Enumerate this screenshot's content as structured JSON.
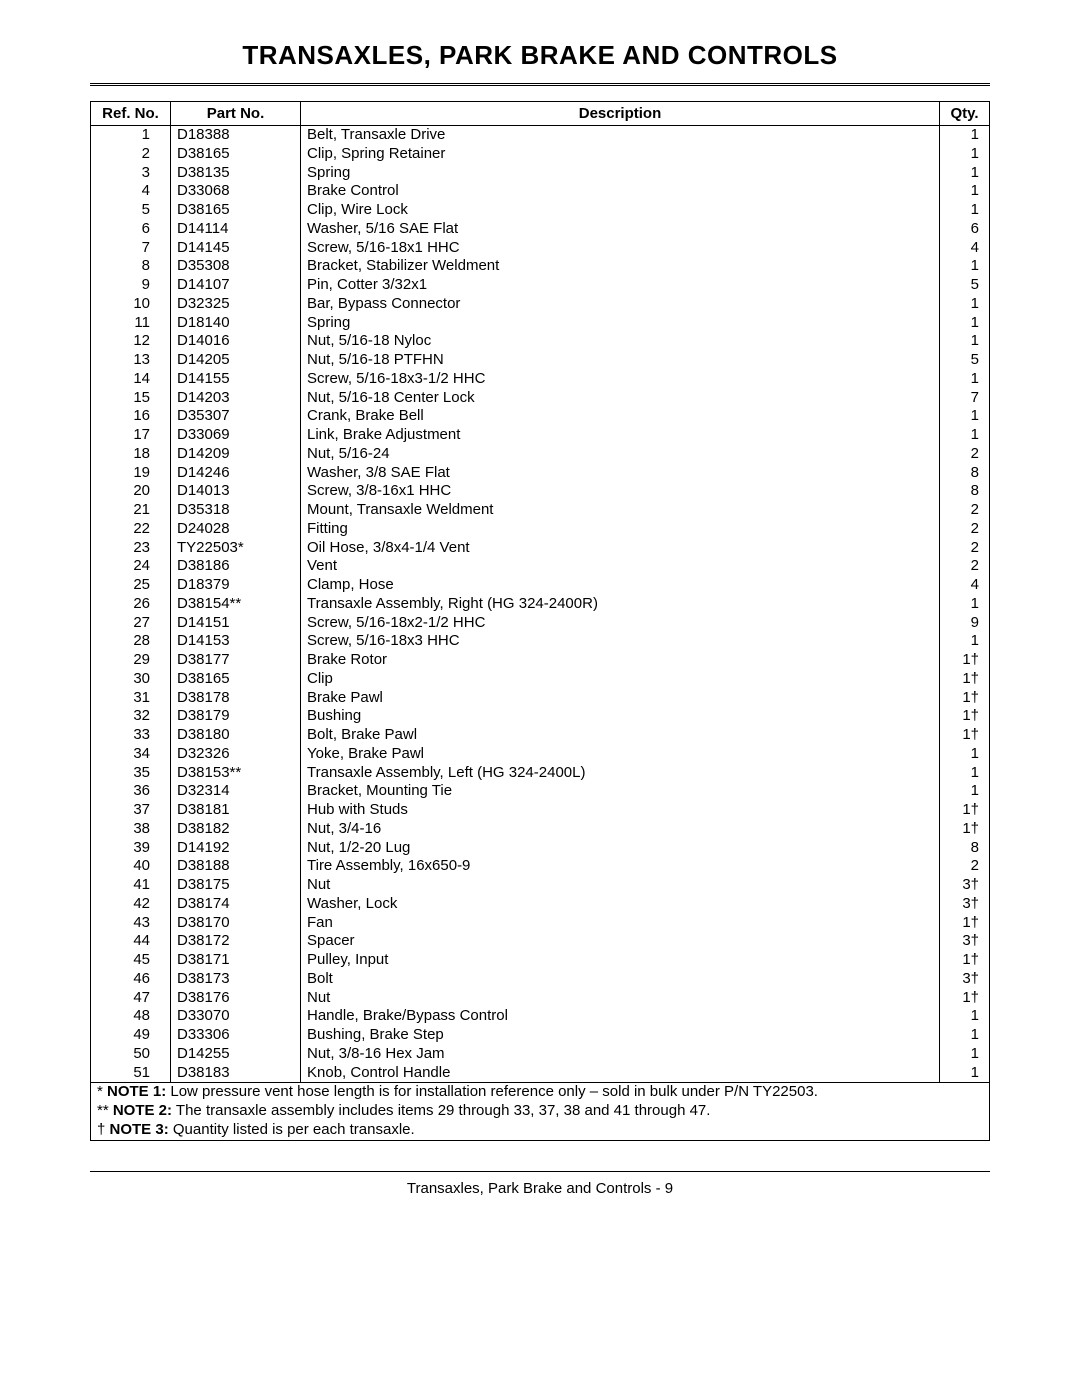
{
  "title": "TRANSAXLES, PARK BRAKE AND CONTROLS",
  "columns": {
    "ref": "Ref. No.",
    "part": "Part No.",
    "desc": "Description",
    "qty": "Qty."
  },
  "rows": [
    {
      "ref": "1",
      "part": "D18388",
      "desc": "Belt, Transaxle Drive",
      "qty": "1"
    },
    {
      "ref": "2",
      "part": "D38165",
      "desc": "Clip, Spring Retainer",
      "qty": "1"
    },
    {
      "ref": "3",
      "part": "D38135",
      "desc": "Spring",
      "qty": "1"
    },
    {
      "ref": "4",
      "part": "D33068",
      "desc": "Brake Control",
      "qty": "1"
    },
    {
      "ref": "5",
      "part": "D38165",
      "desc": "Clip, Wire Lock",
      "qty": "1"
    },
    {
      "ref": "6",
      "part": "D14114",
      "desc": "Washer, 5/16 SAE Flat",
      "qty": "6"
    },
    {
      "ref": "7",
      "part": "D14145",
      "desc": "Screw, 5/16-18x1 HHC",
      "qty": "4"
    },
    {
      "ref": "8",
      "part": "D35308",
      "desc": "Bracket, Stabilizer Weldment",
      "qty": "1"
    },
    {
      "ref": "9",
      "part": "D14107",
      "desc": "Pin, Cotter 3/32x1",
      "qty": "5"
    },
    {
      "ref": "10",
      "part": "D32325",
      "desc": "Bar, Bypass Connector",
      "qty": "1"
    },
    {
      "ref": "11",
      "part": "D18140",
      "desc": "Spring",
      "qty": "1"
    },
    {
      "ref": "12",
      "part": "D14016",
      "desc": "Nut, 5/16-18 Nyloc",
      "qty": "1"
    },
    {
      "ref": "13",
      "part": "D14205",
      "desc": "Nut, 5/16-18 PTFHN",
      "qty": "5"
    },
    {
      "ref": "14",
      "part": "D14155",
      "desc": "Screw, 5/16-18x3-1/2 HHC",
      "qty": "1"
    },
    {
      "ref": "15",
      "part": "D14203",
      "desc": "Nut, 5/16-18 Center Lock",
      "qty": "7"
    },
    {
      "ref": "16",
      "part": "D35307",
      "desc": "Crank, Brake Bell",
      "qty": "1"
    },
    {
      "ref": "17",
      "part": "D33069",
      "desc": "Link, Brake Adjustment",
      "qty": "1"
    },
    {
      "ref": "18",
      "part": "D14209",
      "desc": "Nut, 5/16-24",
      "qty": "2"
    },
    {
      "ref": "19",
      "part": "D14246",
      "desc": "Washer, 3/8 SAE Flat",
      "qty": "8"
    },
    {
      "ref": "20",
      "part": "D14013",
      "desc": "Screw, 3/8-16x1 HHC",
      "qty": "8"
    },
    {
      "ref": "21",
      "part": "D35318",
      "desc": "Mount, Transaxle Weldment",
      "qty": "2"
    },
    {
      "ref": "22",
      "part": "D24028",
      "desc": "Fitting",
      "qty": "2"
    },
    {
      "ref": "23",
      "part": "TY22503*",
      "desc": "Oil Hose, 3/8x4-1/4 Vent",
      "qty": "2"
    },
    {
      "ref": "24",
      "part": "D38186",
      "desc": "Vent",
      "qty": "2"
    },
    {
      "ref": "25",
      "part": "D18379",
      "desc": "Clamp, Hose",
      "qty": "4"
    },
    {
      "ref": "26",
      "part": "D38154**",
      "desc": "Transaxle Assembly, Right (HG 324-2400R)",
      "qty": "1"
    },
    {
      "ref": "27",
      "part": "D14151",
      "desc": "Screw, 5/16-18x2-1/2 HHC",
      "qty": "9"
    },
    {
      "ref": "28",
      "part": "D14153",
      "desc": "Screw, 5/16-18x3 HHC",
      "qty": "1"
    },
    {
      "ref": "29",
      "part": "D38177",
      "desc": "Brake Rotor",
      "qty": "1†"
    },
    {
      "ref": "30",
      "part": "D38165",
      "desc": "Clip",
      "qty": "1†"
    },
    {
      "ref": "31",
      "part": "D38178",
      "desc": "Brake Pawl",
      "qty": "1†"
    },
    {
      "ref": "32",
      "part": "D38179",
      "desc": "Bushing",
      "qty": "1†"
    },
    {
      "ref": "33",
      "part": "D38180",
      "desc": "Bolt, Brake Pawl",
      "qty": "1†"
    },
    {
      "ref": "34",
      "part": "D32326",
      "desc": "Yoke, Brake Pawl",
      "qty": "1"
    },
    {
      "ref": "35",
      "part": "D38153**",
      "desc": "Transaxle Assembly, Left (HG 324-2400L)",
      "qty": "1"
    },
    {
      "ref": "36",
      "part": "D32314",
      "desc": "Bracket, Mounting Tie",
      "qty": "1"
    },
    {
      "ref": "37",
      "part": "D38181",
      "desc": "Hub with Studs",
      "qty": "1†"
    },
    {
      "ref": "38",
      "part": "D38182",
      "desc": "Nut, 3/4-16",
      "qty": "1†"
    },
    {
      "ref": "39",
      "part": "D14192",
      "desc": "Nut, 1/2-20 Lug",
      "qty": "8"
    },
    {
      "ref": "40",
      "part": "D38188",
      "desc": "Tire Assembly, 16x650-9",
      "qty": "2"
    },
    {
      "ref": "41",
      "part": "D38175",
      "desc": "Nut",
      "qty": "3†"
    },
    {
      "ref": "42",
      "part": "D38174",
      "desc": "Washer, Lock",
      "qty": "3†"
    },
    {
      "ref": "43",
      "part": "D38170",
      "desc": "Fan",
      "qty": "1†"
    },
    {
      "ref": "44",
      "part": "D38172",
      "desc": "Spacer",
      "qty": "3†"
    },
    {
      "ref": "45",
      "part": "D38171",
      "desc": "Pulley, Input",
      "qty": "1†"
    },
    {
      "ref": "46",
      "part": "D38173",
      "desc": "Bolt",
      "qty": "3†"
    },
    {
      "ref": "47",
      "part": "D38176",
      "desc": "Nut",
      "qty": "1†"
    },
    {
      "ref": "48",
      "part": "D33070",
      "desc": "Handle, Brake/Bypass Control",
      "qty": "1"
    },
    {
      "ref": "49",
      "part": "D33306",
      "desc": "Bushing, Brake Step",
      "qty": "1"
    },
    {
      "ref": "50",
      "part": "D14255",
      "desc": "Nut, 3/8-16 Hex Jam",
      "qty": "1"
    },
    {
      "ref": "51",
      "part": "D38183",
      "desc": "Knob, Control Handle",
      "qty": "1"
    }
  ],
  "notes": {
    "n1_prefix": "*  ",
    "n1_label": "NOTE 1:",
    "n1_text": " Low pressure vent hose length is for installation reference only – sold in bulk under P/N TY22503.",
    "n2_prefix": "** ",
    "n2_label": "NOTE 2:",
    "n2_text": " The transaxle assembly includes items 29 through 33, 37, 38 and 41 through 47.",
    "n3_prefix": "†  ",
    "n3_label": "NOTE 3:",
    "n3_text": " Quantity listed is per each transaxle."
  },
  "footer": "Transaxles, Park Brake and Controls - 9"
}
